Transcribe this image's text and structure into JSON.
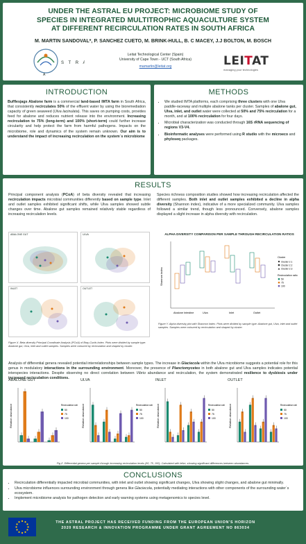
{
  "header": {
    "title_line1": "UNDER THE ASTRAL EU PROJECT: MICROBIOME STUDY OF",
    "title_line2": "SPECIES IN INTEGRATED MULTITROPHIC AQUACULTURE SYSTEM",
    "title_line3": "AT DIFFERENT RECIRCULATION RATES IN SOUTH AFRICA",
    "authors": "M. MARTIN SANDOVAL*, P. SANCHEZ CUETO, M. BRINK-HULL,  B. C MACEY, J.J BOLTON, M. BOSCH",
    "affiliation1": "Leitat Technological Center (Spain)",
    "affiliation2": "University of Cape Town - UCT (South Africa)",
    "email": "mamartin@leitat.org",
    "astral_logo_text": "ASTRAL",
    "leitat_brand_a": "LEI",
    "leitat_brand_b": "T",
    "leitat_brand_c": "AT",
    "leitat_tagline": "managing your technologies"
  },
  "intro": {
    "title": "INTRODUCTION",
    "p1_bold_a": "Bufflesjags Abalone farm",
    "p1_a": " is a commercial ",
    "p1_bold_b": "land-based IMTA farm",
    "p1_b": " in South Africa, that consistently ",
    "p1_bold_c": "recirculates 50%",
    "p1_c": " of the effluent water by using the bioremediation capacity of green seaweed (",
    "p1_italic": "Ulva lacinulata",
    "p1_d": "). This saves on pumping costs, provides feed for abalone and reduces nutrient release into the environment. ",
    "p1_bold_d": "Increasing recirculation to 75% (long-term) and 100% (short-term)",
    "p1_e": " could further increase circularity and help protect the farm from harmful pathogens. Impacts on the microbiome, role and dynamics of the system remain unknown. ",
    "p1_bold_e": "Our aim is to understand the impact of increasing recirculation on the system´s microbiome"
  },
  "methods": {
    "title": "METHODS",
    "m1_a": "We studied IMTA platforms, each comprising ",
    "m1_bold_a": "three clusters",
    "m1_b": " with one Ulva paddle-raceway and multiple abalone tanks per cluster. Samples of ",
    "m1_bold_b": "abalone gut, Ulva, inlet, and outlet",
    "m1_c": " water were collected at ",
    "m1_bold_c": "50% and 75% recirculation",
    "m1_d": " for a month, and at ",
    "m1_bold_d": "100% recirculation",
    "m1_e": " for four days.",
    "m2_a": "Microbial characterization was conducted through ",
    "m2_bold": "16S rRNA sequencing of regions V3-V4.",
    "m3_bold_a": "Bioinformatic analyses",
    "m3_a": " were performed using ",
    "m3_bold_b": "R studio",
    "m3_b": " with the ",
    "m3_bold_c": "microeco",
    "m3_c": " and ",
    "m3_bold_d": "phyloseq",
    "m3_d": " packages."
  },
  "results": {
    "title": "RESULTS",
    "left_a": "Principal component analysis (",
    "left_bold_a": "PCoA",
    "left_b": ") of beta diversity revealed that increasing ",
    "left_bold_b": "recirculation impacts",
    "left_c": " microbial communities differently ",
    "left_bold_c": "based on sample type",
    "left_d": ". Inlet and outlet samples exhibited significant shifts, while Ulva samples showed subtle changes over time. Abalone gut samples remained relatively stable regardless of increasing recirculation levels.",
    "right_a": "Species richness composition studies showed how increasing recirculation affected the different samples. ",
    "right_bold_a": "Both inlet and outlet samples exhibited a decline in alpha diversity",
    "right_b": " (Shannon index), indicative of a more specialized community. Ulva samples followed a similar trend, though less pronounced. Conversely, abalone samples displayed a slight increase in alpha diversity with recirculation.",
    "pcoa_labels": [
      "ABALONE GUT",
      "ULVA",
      "INLET",
      "OUTLET"
    ],
    "fig1_caption": "Figure X. Beta diversity Principal Coordinate Analysis (PCoA) of Bray-Curtis Index. Plots were divided by sample type: Abalone gut, Ulva, inlet and outlet samples. Samples were coloured by recirculation and shaped by cluster.",
    "alpha_title": "ALPHA DIVERSITY COMPARISON PER SAMPLE THROUGH RECIRCULATION RATIOS",
    "alpha_ylabel": "Shannon index",
    "alpha_groups": [
      "Abalone Intestine",
      "Ulva",
      "Inlet",
      "Outlet"
    ],
    "alpha_legend_cluster_title": "Cluster",
    "alpha_legend_clusters": [
      "Cluster 2.1",
      "Cluster 2.2",
      "Cluster 2.3"
    ],
    "alpha_legend_recirc_title": "Recirculation ratio",
    "alpha_legend_recirc": [
      "50",
      "75",
      "100"
    ],
    "fig1b_caption": "Figure Y. Alpha diversity plot with Shannon Index. Plots were divided by sample type: Abalone gut, Ulva, inlet and outlet samples. Samples were coloured by recirculation and shaped by cluster.",
    "para2_a": "Analysis of differential genera revealed potential interrelationships between sample types. The increase in ",
    "para2_italic_a": "Glaciecola",
    "para2_b": " within the Ulva microbiome suggests a potential role for this genus in modulatory ",
    "para2_bold_a": "interactions in the surrounding environment",
    "para2_c": ". Moreover, the presence of ",
    "para2_italic_b": "Planctomycetes",
    "para2_d": " in both abalone gut and Ulva samples indicates potential interspecies interactions.  Despite observing no direct correlation between ",
    "para2_italic_c": "Vibrio",
    "para2_e": " abundance and recirculation, the system demonstrated ",
    "para2_bold_b": "resilience to dysbiosis under increased recirculation conditions.",
    "bar_titles": [
      "ABALONE GUT",
      "ULVA",
      "INLET",
      "OUTLET"
    ],
    "bar_ylabel": "Relative abundance",
    "bar_legend_title": "Recirculation ratio",
    "bar_legend": [
      "50",
      "75",
      "100"
    ],
    "fig2_caption": "Fig Z. Differential genera per sample through increasing recirculation levels (50, 75, 100). Calculated with lefse, showing significant differences between abundances."
  },
  "conclusions": {
    "title": "CONCLUSIONS",
    "c1": "Recirculation differentially impacted microbial communities, with inlet and outlet showing significant changes, Ulva showing slight changes, and abalone gut minimally.",
    "c2_a": "Ulva microbiome influences surrounding environment through genera like ",
    "c2_italic": "Glaciecola",
    "c2_b": ", potentially mediating interactions with other components of the surrounding water´s ecosystem.",
    "c3": "Implement microbiome analysis for pathogen detection and early warning systems using metagenomics to species level."
  },
  "footer": {
    "line1": "THE ASTRAL PROJECT HAS RECEIVED FUNDING FROM THE EUROPEAN UNION'S HORIZON",
    "line2": "2020 RESEARCH & INNOVATION PROGRAMME UNDER GRANT AGREEMENT NO 863034"
  },
  "colors": {
    "background": "#2f6b4b",
    "title_green": "#1f5a3a",
    "r50": "#1a8a70",
    "r75": "#e07b1a",
    "r100": "#6f5bb0"
  },
  "chart_data": [
    {
      "type": "bar",
      "title": "ABALONE GUT",
      "ylabel": "Relative abundance",
      "categories": [
        "g1",
        "g2",
        "g3"
      ],
      "series": [
        {
          "name": "50",
          "values": [
            0.2,
            0.1,
            0.05
          ]
        },
        {
          "name": "75",
          "values": [
            1.5,
            0.3,
            0.2
          ]
        },
        {
          "name": "100",
          "values": [
            0.1,
            0.9,
            0.35
          ]
        }
      ]
    },
    {
      "type": "bar",
      "title": "ULVA",
      "ylabel": "Relative abundance",
      "categories": [
        "g1",
        "g2",
        "g3",
        "g4"
      ],
      "series": [
        {
          "name": "50",
          "values": [
            1.1,
            0.6,
            0.1,
            0.15
          ]
        },
        {
          "name": "75",
          "values": [
            0.5,
            0.95,
            0.25,
            0.2
          ]
        },
        {
          "name": "100",
          "values": [
            0.2,
            0.3,
            0.85,
            0.95
          ]
        }
      ]
    },
    {
      "type": "bar",
      "title": "INLET",
      "ylabel": "Relative abundance",
      "categories": [
        "g1",
        "g2",
        "g3",
        "g4"
      ],
      "series": [
        {
          "name": "50",
          "values": [
            1.2,
            0.2,
            0.5,
            0.3
          ]
        },
        {
          "name": "75",
          "values": [
            0.3,
            1.1,
            0.9,
            0.6
          ]
        },
        {
          "name": "100",
          "values": [
            0.15,
            0.35,
            0.6,
            1.3
          ]
        }
      ]
    },
    {
      "type": "bar",
      "title": "OUTLET",
      "ylabel": "Relative abundance",
      "categories": [
        "g1",
        "g2",
        "g3",
        "g4"
      ],
      "series": [
        {
          "name": "50",
          "values": [
            0.6,
            1.1,
            0.4,
            0.3
          ]
        },
        {
          "name": "75",
          "values": [
            0.9,
            1.3,
            0.6,
            0.5
          ]
        },
        {
          "name": "100",
          "values": [
            0.3,
            0.5,
            1.3,
            0.4
          ]
        }
      ]
    }
  ]
}
